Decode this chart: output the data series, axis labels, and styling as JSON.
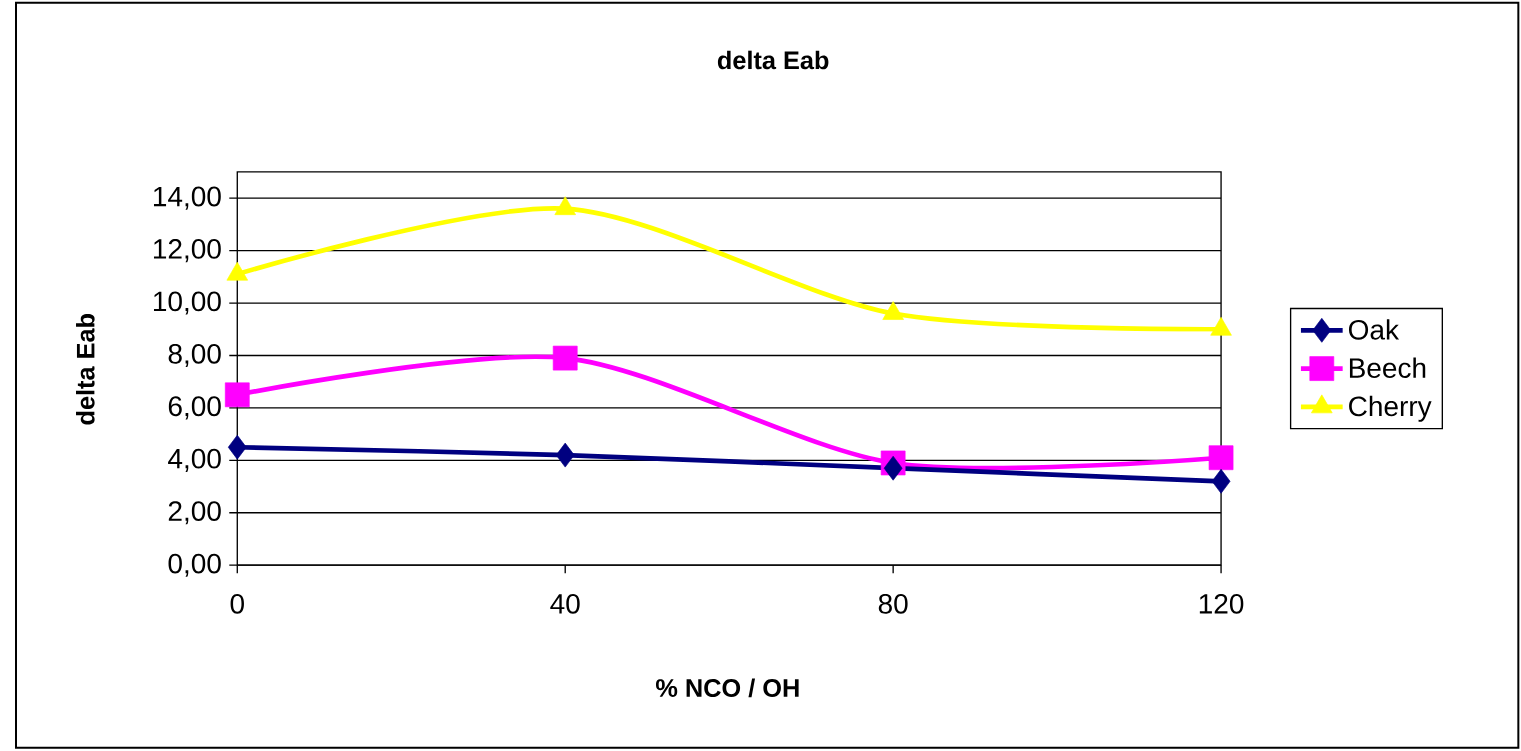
{
  "chart_data": {
    "type": "line",
    "title": "delta Eab",
    "xlabel": "% NCO / OH",
    "ylabel": "delta Eab",
    "x": [
      0,
      40,
      80,
      120
    ],
    "xlim": [
      0,
      120
    ],
    "xticks": [
      0,
      40,
      80,
      120
    ],
    "ylim": [
      0,
      15
    ],
    "yticks": [
      {
        "value": 0,
        "label": "0,00"
      },
      {
        "value": 2,
        "label": "2,00"
      },
      {
        "value": 4,
        "label": "4,00"
      },
      {
        "value": 6,
        "label": "6,00"
      },
      {
        "value": 8,
        "label": "8,00"
      },
      {
        "value": 10,
        "label": "10,00"
      },
      {
        "value": 12,
        "label": "12,00"
      },
      {
        "value": 14,
        "label": "14,00"
      }
    ],
    "grid": "y",
    "legend": "right",
    "series": [
      {
        "name": "Oak",
        "color": "#000080",
        "marker": "diamond",
        "values": [
          4.5,
          4.2,
          3.7,
          3.2
        ]
      },
      {
        "name": "Beech",
        "color": "#ff00ff",
        "marker": "square",
        "values": [
          6.5,
          7.9,
          3.9,
          4.1
        ]
      },
      {
        "name": "Cherry",
        "color": "#ffff00",
        "marker": "triangle",
        "values": [
          11.1,
          13.6,
          9.6,
          9.0
        ]
      }
    ]
  }
}
